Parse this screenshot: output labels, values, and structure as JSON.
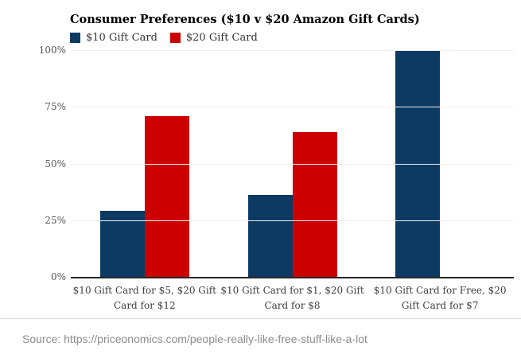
{
  "chart_data": {
    "type": "bar",
    "title": "Consumer Preferences ($10 v $20 Amazon Gift Cards)",
    "categories": [
      "$10 Gift Card for $5, $20 Gift Card for $12",
      "$10 Gift Card for $1, $20 Gift Card for $8",
      "$10 Gift Card for Free, $20 Gift Card for $7"
    ],
    "series": [
      {
        "name": "$10 Gift Card",
        "color": "#0d3a63",
        "values": [
          29,
          36,
          100
        ]
      },
      {
        "name": "$20 Gift Card",
        "color": "#cc0000",
        "values": [
          71,
          64,
          0
        ]
      }
    ],
    "ylabel": "",
    "xlabel": "",
    "ylim": [
      0,
      100
    ],
    "yticks": [
      {
        "value": 0,
        "label": "0%"
      },
      {
        "value": 25,
        "label": "25%"
      },
      {
        "value": 50,
        "label": "50%"
      },
      {
        "value": 75,
        "label": "75%"
      },
      {
        "value": 100,
        "label": "100%"
      }
    ],
    "grid": true,
    "legend_position": "top-left"
  },
  "footer": {
    "source": "Source: https://priceonomics.com/people-really-like-free-stuff-like-a-lot"
  },
  "colors": {
    "series_blue": "#0d3a63",
    "series_red": "#cc0000",
    "gridline": "#f0f0f0",
    "axis_line": "#262626",
    "tick_label": "#555555",
    "category_label": "#3d3d3d",
    "source_text": "#8c8c8c",
    "divider": "#d9d9d9",
    "background": "#ffffff"
  }
}
